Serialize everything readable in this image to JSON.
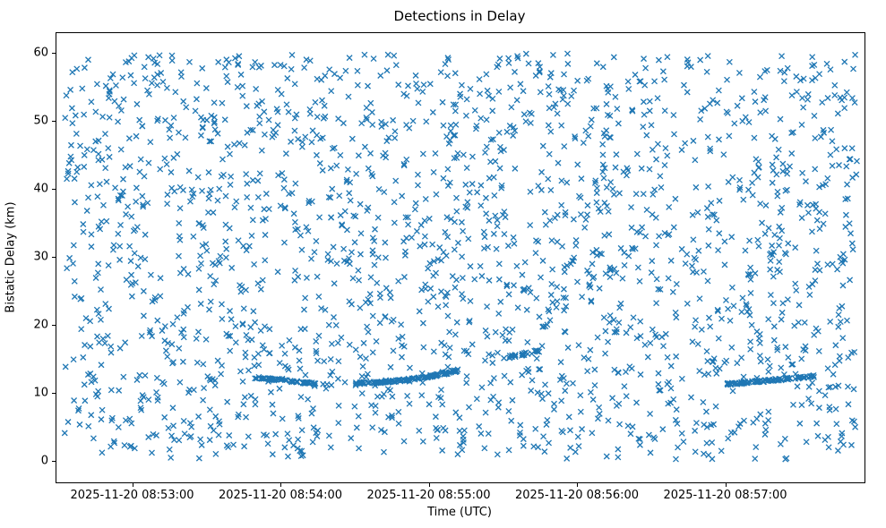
{
  "chart_data": {
    "type": "scatter",
    "title": "Detections in Delay",
    "xlabel": "Time (UTC)",
    "ylabel": "Bistatic Delay (km)",
    "marker": "x",
    "marker_color": "#1f77b4",
    "marker_size_px": 6,
    "grid": false,
    "legend": null,
    "x_axis": {
      "unit": "seconds relative to 2025-11-20 08:53:00",
      "range_seconds": [
        -31,
        296
      ],
      "ticks": [
        {
          "label": "2025-11-20 08:53:00",
          "t": 0
        },
        {
          "label": "2025-11-20 08:54:00",
          "t": 60
        },
        {
          "label": "2025-11-20 08:55:00",
          "t": 120
        },
        {
          "label": "2025-11-20 08:56:00",
          "t": 180
        },
        {
          "label": "2025-11-20 08:57:00",
          "t": 240
        }
      ]
    },
    "y_axis": {
      "range": [
        -3,
        63
      ],
      "ticks": [
        0,
        10,
        20,
        30,
        40,
        50,
        60
      ]
    },
    "series": {
      "description": "Dense uniform clutter of detections across the full time/delay window, plus dense low-delay target tracks near 11-13 km bistatic delay.",
      "noise": {
        "count": 2050,
        "t_range": [
          -28,
          293
        ],
        "y_range": [
          0.4,
          60.0
        ],
        "seed": 42
      },
      "tracks": [
        {
          "t_start": 49,
          "t_end": 74,
          "y_start": 12.4,
          "y_end": 11.5,
          "count": 62,
          "y_jitter": 0.15,
          "ease": 1
        },
        {
          "t_start": 90,
          "t_end": 132,
          "y_start": 11.6,
          "y_end": 13.5,
          "count": 115,
          "y_jitter": 0.15,
          "ease": 2
        },
        {
          "t_start": 150,
          "t_end": 166,
          "y_start": 15.3,
          "y_end": 16.4,
          "count": 26,
          "y_jitter": 0.2,
          "ease": 1
        },
        {
          "t_start": 240,
          "t_end": 276,
          "y_start": 11.4,
          "y_end": 12.6,
          "count": 98,
          "y_jitter": 0.15,
          "ease": 1
        }
      ]
    }
  }
}
